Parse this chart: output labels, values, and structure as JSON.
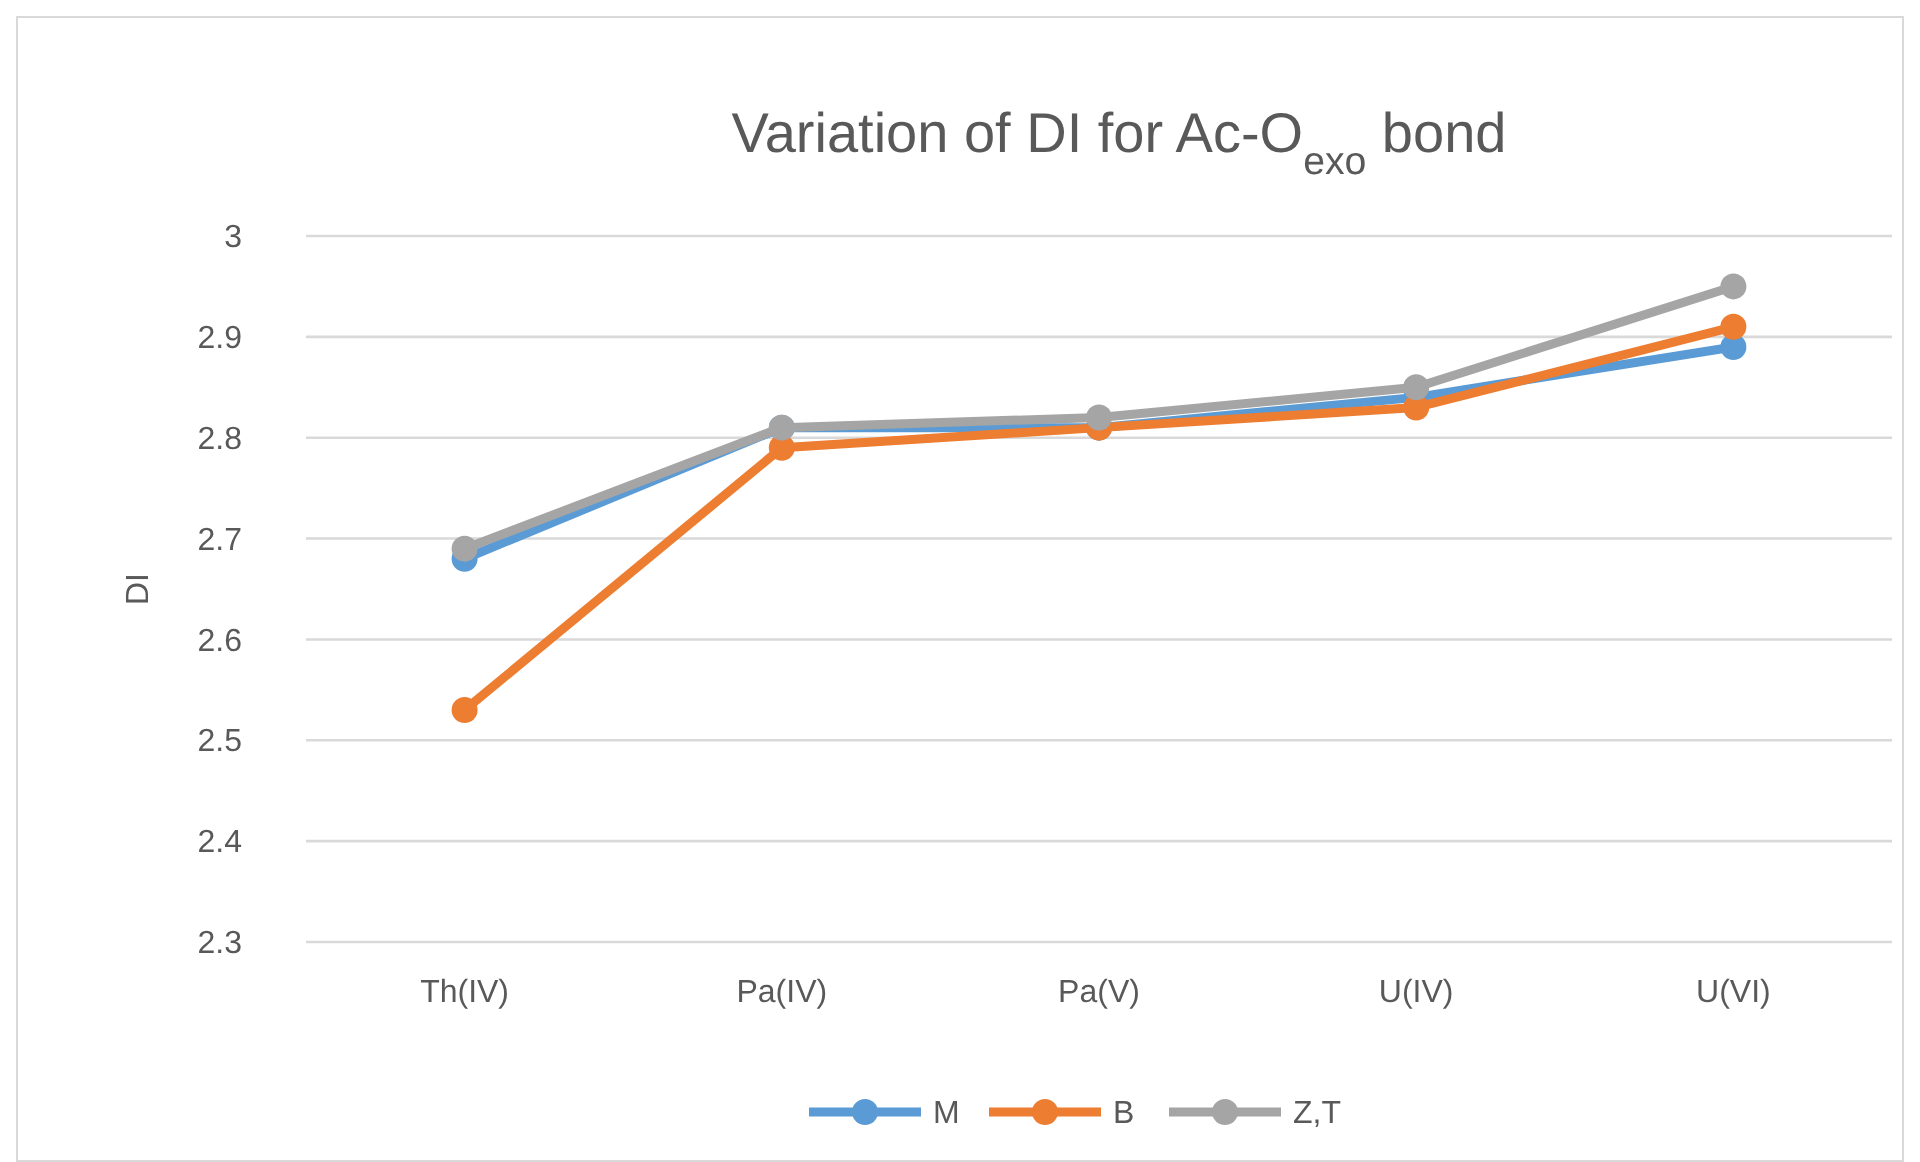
{
  "chart_data": {
    "type": "line",
    "title": "Variation of DI for Ac-O$_{exo}$ bond",
    "ylabel": "DI",
    "categories": [
      "Th(IV)",
      "Pa(IV)",
      "Pa(V)",
      "U(IV)",
      "U(VI)"
    ],
    "series": [
      {
        "name": "M",
        "color": "#5b9bd5",
        "values": [
          2.68,
          2.81,
          2.81,
          2.84,
          2.89
        ]
      },
      {
        "name": "B",
        "color": "#ed7d31",
        "values": [
          2.53,
          2.79,
          2.81,
          2.83,
          2.91
        ]
      },
      {
        "name": "Z,T",
        "color": "#a5a5a5",
        "values": [
          2.69,
          2.81,
          2.82,
          2.85,
          2.95
        ]
      }
    ],
    "ylim": [
      2.3,
      3
    ],
    "yticks": [
      2.3,
      2.4,
      2.5,
      2.6,
      2.7,
      2.8,
      2.9,
      3
    ],
    "grid": "y",
    "legend": "bottom",
    "marker": "circle",
    "line_style": "solid"
  }
}
